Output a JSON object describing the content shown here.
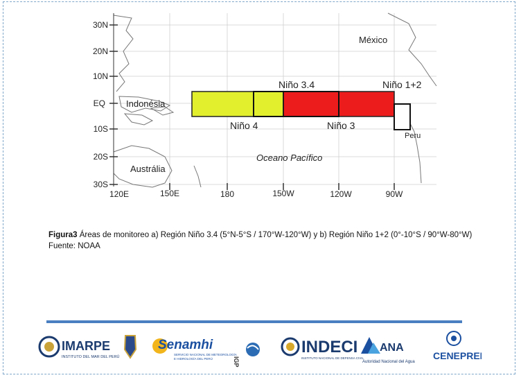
{
  "map": {
    "lat_labels": [
      "30N",
      "20N",
      "10N",
      "EQ",
      "10S",
      "20S",
      "30S"
    ],
    "lon_labels": [
      "120E",
      "150E",
      "180",
      "150W",
      "120W",
      "90W"
    ],
    "places": {
      "mexico": "México",
      "indonesia": "Indonésia",
      "peru": "Peru",
      "australia": "Austrália",
      "ocean": "Oceano Pacífico"
    },
    "regions": {
      "nino34": "Niño 3.4",
      "nino4": "Niño 4",
      "nino3": "Niño 3",
      "nino12": "Niño 1+2"
    },
    "colors": {
      "nino4_fill": "#e2ef2c",
      "nino3_fill": "#ec1c1c",
      "ocean_bg": "#ffffff",
      "land": "#8a8a8a"
    }
  },
  "caption": {
    "label": "Figura3",
    "text": " Áreas de monitoreo a) Región Niño 3.4 (5°N-5°S / 170°W-120°W) y b) Región Niño 1+2 (0°-10°S / 90°W-80°W) Fuente: NOAA"
  },
  "logos": {
    "imarpe": "IMARPE",
    "imarpe_sub": "INSTITUTO DEL MAR DEL PERÚ",
    "senamhi": "Senamhi",
    "senamhi_sub1": "SERVICIO NACIONAL DE METEOROLOGÍA",
    "senamhi_sub2": "E HIDROLOGÍA DEL PERÚ",
    "igp": "IGP",
    "indeci": "INDECI",
    "indeci_sub": "INSTITUTO NACIONAL DE DEFENSA CIVIL",
    "ana": "ANA",
    "ana_sub": "Autoridad Nacional del Agua",
    "cenepred": "CENEPRED"
  }
}
